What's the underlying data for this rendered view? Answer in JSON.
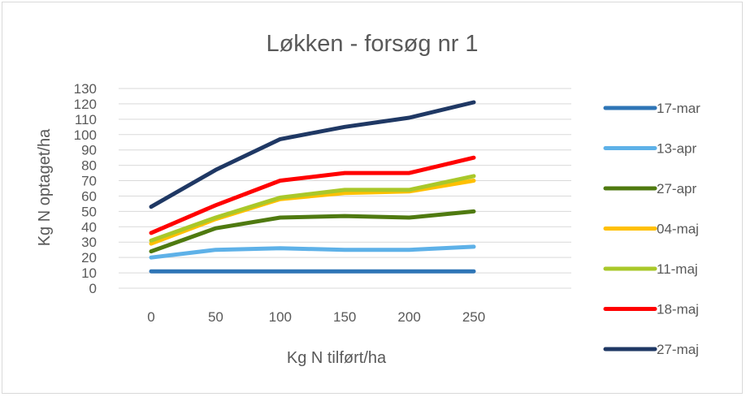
{
  "chart_data": {
    "type": "line",
    "title": "Løkken - forsøg nr 1",
    "xlabel": "Kg N tilført/ha",
    "ylabel": "Kg N optaget/ha",
    "x": [
      0,
      50,
      100,
      150,
      200,
      250
    ],
    "x_tick_labels": [
      "0",
      "50",
      "100",
      "150",
      "200",
      "250"
    ],
    "ylim": [
      0,
      130
    ],
    "y_tick_labels": [
      "0",
      "10",
      "20",
      "30",
      "40",
      "50",
      "60",
      "70",
      "80",
      "90",
      "100",
      "110",
      "120",
      "130"
    ],
    "grid": true,
    "legend_position": "right",
    "series": [
      {
        "name": "17-mar",
        "color": "#2e75b6",
        "values": [
          11,
          11,
          11,
          11,
          11,
          11
        ]
      },
      {
        "name": "13-apr",
        "color": "#5eb1e8",
        "values": [
          20,
          25,
          26,
          25,
          25,
          27
        ]
      },
      {
        "name": "27-apr",
        "color": "#4f7a10",
        "values": [
          24,
          39,
          46,
          47,
          46,
          50
        ]
      },
      {
        "name": "04-maj",
        "color": "#ffc000",
        "values": [
          29,
          45,
          58,
          62,
          63,
          70
        ]
      },
      {
        "name": "11-maj",
        "color": "#a9c82a",
        "values": [
          31,
          46,
          59,
          64,
          64,
          73
        ]
      },
      {
        "name": "18-maj",
        "color": "#ff0000",
        "values": [
          36,
          54,
          70,
          75,
          75,
          85
        ]
      },
      {
        "name": "27-maj",
        "color": "#1f3864",
        "values": [
          53,
          77,
          97,
          105,
          111,
          121
        ]
      }
    ]
  }
}
